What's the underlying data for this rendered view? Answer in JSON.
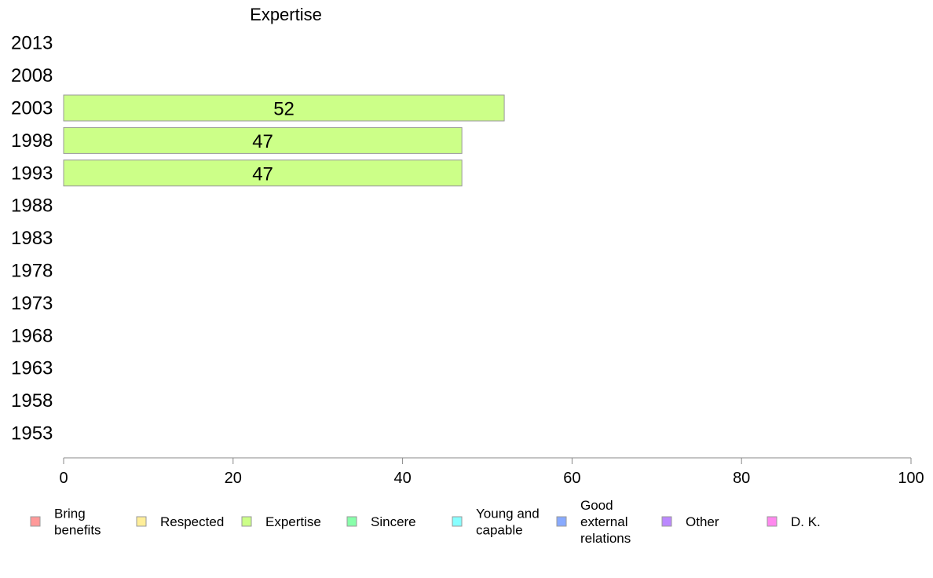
{
  "chart_data": {
    "type": "bar",
    "orientation": "horizontal",
    "title": "Expertise",
    "categories": [
      "2013",
      "2008",
      "2003",
      "1998",
      "1993",
      "1988",
      "1983",
      "1978",
      "1973",
      "1968",
      "1963",
      "1958",
      "1953"
    ],
    "series": [
      {
        "name": "Expertise",
        "color": "#ccff88",
        "values": [
          null,
          null,
          52,
          47,
          47,
          null,
          null,
          null,
          null,
          null,
          null,
          null,
          null
        ]
      }
    ],
    "data_labels": [
      "",
      "",
      "52",
      "47",
      "47",
      "",
      "",
      "",
      "",
      "",
      "",
      "",
      ""
    ],
    "xlim": [
      0,
      100
    ],
    "xticks": [
      0,
      20,
      40,
      60,
      80,
      100
    ],
    "xlabel": "",
    "ylabel": "",
    "grid": false,
    "legend_position": "bottom",
    "legend": [
      {
        "lines": [
          "Bring",
          "benefits"
        ],
        "color": "#ff9999"
      },
      {
        "lines": [
          "Respected"
        ],
        "color": "#ffee99"
      },
      {
        "lines": [
          "Expertise"
        ],
        "color": "#ccff88"
      },
      {
        "lines": [
          "Sincere"
        ],
        "color": "#88ffaa"
      },
      {
        "lines": [
          "Young and",
          "capable"
        ],
        "color": "#88ffff"
      },
      {
        "lines": [
          "Good",
          "external",
          "relations"
        ],
        "color": "#88aaff"
      },
      {
        "lines": [
          "Other"
        ],
        "color": "#bb88ff"
      },
      {
        "lines": [
          "D. K."
        ],
        "color": "#ff88ee"
      }
    ]
  }
}
